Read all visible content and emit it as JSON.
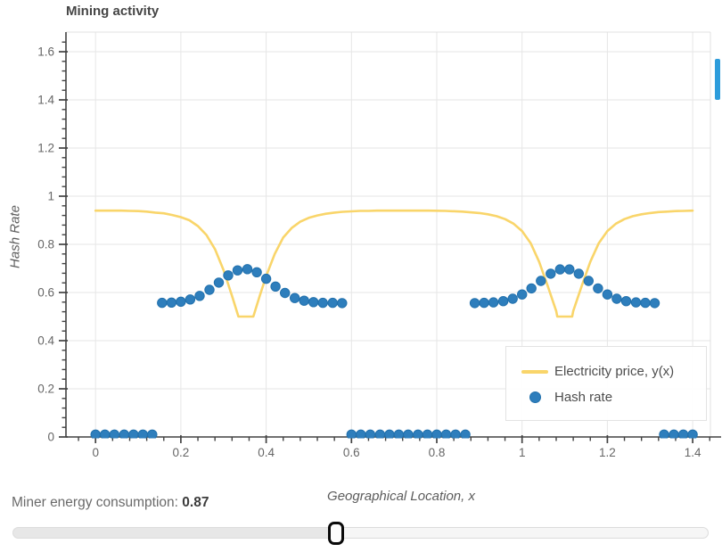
{
  "colors": {
    "line_yellow": "#f9d56a",
    "dot_blue_fill": "#2e7ebc",
    "dot_blue_edge": "#2271ad",
    "grid": "#e6e6e6",
    "outline": "#e0e0e0",
    "axis": "#424242",
    "tick_label": "#666666",
    "scrollbar_blue": "#2d9cdb"
  },
  "legend": {
    "items": [
      {
        "label": "Electricity price, y(x)",
        "swatch": "line",
        "color": "#f9d56a"
      },
      {
        "label": "Hash rate",
        "swatch": "circle",
        "color": "#2e7ebc"
      }
    ]
  },
  "footer": {
    "label": "Miner energy consumption:",
    "value": "0.87"
  },
  "chart_data": {
    "type": "mixed",
    "title": "Mining activity",
    "xlabel": "Geographical Location, x",
    "ylabel": "Hash Rate",
    "x_range": [
      -0.07,
      1.443
    ],
    "y_range": [
      0,
      1.68
    ],
    "grid": true,
    "legend_position": "bottom-right",
    "x_ticks": [
      0,
      0.2,
      0.4,
      0.6,
      0.8,
      1,
      1.2,
      1.4
    ],
    "x_tick_labels": [
      "0",
      "0.2",
      "0.4",
      "0.6",
      "0.8",
      "1",
      "1.2",
      "1.4"
    ],
    "y_ticks": [
      0,
      0.2,
      0.4,
      0.6,
      0.8,
      1,
      1.2,
      1.4,
      1.6
    ],
    "y_tick_labels": [
      "0",
      "0.2",
      "0.4",
      "0.6",
      "0.8",
      "1",
      "1.2",
      "1.4",
      "1.6"
    ],
    "minor_tick_step": 0.04,
    "series": [
      {
        "name": "Electricity price, y(x)",
        "type": "line",
        "color": "#f9d56a",
        "points": [
          [
            0.0,
            0.94
          ],
          [
            0.02,
            0.94
          ],
          [
            0.04,
            0.94
          ],
          [
            0.06,
            0.94
          ],
          [
            0.08,
            0.939
          ],
          [
            0.1,
            0.938
          ],
          [
            0.12,
            0.936
          ],
          [
            0.14,
            0.932
          ],
          [
            0.16,
            0.929
          ],
          [
            0.18,
            0.922
          ],
          [
            0.2,
            0.913
          ],
          [
            0.22,
            0.9
          ],
          [
            0.24,
            0.876
          ],
          [
            0.26,
            0.839
          ],
          [
            0.28,
            0.78
          ],
          [
            0.3,
            0.693
          ],
          [
            0.32,
            0.586
          ],
          [
            0.335,
            0.5
          ],
          [
            0.37,
            0.5
          ],
          [
            0.385,
            0.586
          ],
          [
            0.4,
            0.668
          ],
          [
            0.42,
            0.76
          ],
          [
            0.44,
            0.828
          ],
          [
            0.46,
            0.868
          ],
          [
            0.48,
            0.894
          ],
          [
            0.5,
            0.91
          ],
          [
            0.52,
            0.92
          ],
          [
            0.54,
            0.927
          ],
          [
            0.56,
            0.932
          ],
          [
            0.58,
            0.935
          ],
          [
            0.6,
            0.937
          ],
          [
            0.62,
            0.939
          ],
          [
            0.64,
            0.939
          ],
          [
            0.66,
            0.94
          ],
          [
            0.7,
            0.94
          ],
          [
            0.74,
            0.94
          ],
          [
            0.78,
            0.94
          ],
          [
            0.82,
            0.939
          ],
          [
            0.86,
            0.936
          ],
          [
            0.9,
            0.93
          ],
          [
            0.92,
            0.925
          ],
          [
            0.94,
            0.917
          ],
          [
            0.96,
            0.905
          ],
          [
            0.98,
            0.886
          ],
          [
            1.0,
            0.855
          ],
          [
            1.02,
            0.805
          ],
          [
            1.04,
            0.728
          ],
          [
            1.06,
            0.628
          ],
          [
            1.08,
            0.523
          ],
          [
            1.0825,
            0.5
          ],
          [
            1.1175,
            0.5
          ],
          [
            1.12,
            0.523
          ],
          [
            1.14,
            0.628
          ],
          [
            1.16,
            0.728
          ],
          [
            1.18,
            0.805
          ],
          [
            1.2,
            0.855
          ],
          [
            1.22,
            0.886
          ],
          [
            1.24,
            0.905
          ],
          [
            1.26,
            0.917
          ],
          [
            1.28,
            0.925
          ],
          [
            1.3,
            0.93
          ],
          [
            1.32,
            0.934
          ],
          [
            1.34,
            0.936
          ],
          [
            1.36,
            0.938
          ],
          [
            1.38,
            0.939
          ],
          [
            1.4,
            0.94
          ]
        ]
      },
      {
        "name": "Hash rate",
        "type": "scatter",
        "color": "#2e7ebc",
        "points": [
          [
            0.0,
            0.01
          ],
          [
            0.022,
            0.01
          ],
          [
            0.044,
            0.01
          ],
          [
            0.067,
            0.01
          ],
          [
            0.089,
            0.01
          ],
          [
            0.111,
            0.01
          ],
          [
            0.133,
            0.01
          ],
          [
            0.156,
            0.557
          ],
          [
            0.178,
            0.558
          ],
          [
            0.2,
            0.562
          ],
          [
            0.222,
            0.571
          ],
          [
            0.244,
            0.586
          ],
          [
            0.267,
            0.611
          ],
          [
            0.289,
            0.641
          ],
          [
            0.311,
            0.671
          ],
          [
            0.333,
            0.692
          ],
          [
            0.356,
            0.697
          ],
          [
            0.378,
            0.684
          ],
          [
            0.4,
            0.657
          ],
          [
            0.422,
            0.625
          ],
          [
            0.444,
            0.598
          ],
          [
            0.467,
            0.577
          ],
          [
            0.489,
            0.566
          ],
          [
            0.511,
            0.56
          ],
          [
            0.533,
            0.557
          ],
          [
            0.556,
            0.557
          ],
          [
            0.578,
            0.556
          ],
          [
            0.6,
            0.01
          ],
          [
            0.622,
            0.01
          ],
          [
            0.644,
            0.01
          ],
          [
            0.667,
            0.01
          ],
          [
            0.689,
            0.01
          ],
          [
            0.711,
            0.01
          ],
          [
            0.733,
            0.01
          ],
          [
            0.756,
            0.01
          ],
          [
            0.778,
            0.01
          ],
          [
            0.8,
            0.01
          ],
          [
            0.822,
            0.01
          ],
          [
            0.844,
            0.01
          ],
          [
            0.867,
            0.01
          ],
          [
            0.889,
            0.556
          ],
          [
            0.911,
            0.557
          ],
          [
            0.933,
            0.559
          ],
          [
            0.956,
            0.564
          ],
          [
            0.978,
            0.574
          ],
          [
            1.0,
            0.592
          ],
          [
            1.022,
            0.617
          ],
          [
            1.044,
            0.648
          ],
          [
            1.067,
            0.678
          ],
          [
            1.089,
            0.696
          ],
          [
            1.111,
            0.696
          ],
          [
            1.133,
            0.678
          ],
          [
            1.156,
            0.648
          ],
          [
            1.178,
            0.617
          ],
          [
            1.2,
            0.592
          ],
          [
            1.222,
            0.574
          ],
          [
            1.244,
            0.564
          ],
          [
            1.267,
            0.559
          ],
          [
            1.289,
            0.557
          ],
          [
            1.311,
            0.556
          ],
          [
            1.333,
            0.01
          ],
          [
            1.356,
            0.01
          ],
          [
            1.378,
            0.01
          ],
          [
            1.4,
            0.01
          ]
        ]
      }
    ]
  }
}
